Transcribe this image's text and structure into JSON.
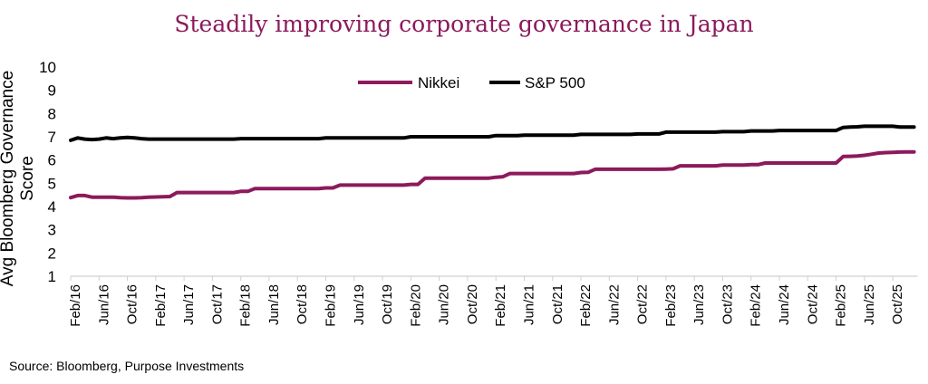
{
  "chart_data": {
    "type": "line",
    "title": "Steadily improving corporate governance in Japan",
    "ylabel": "Avg Bloomberg Governance Score",
    "xlabel": "",
    "ylim": [
      1,
      10
    ],
    "yticks": [
      1,
      2,
      3,
      4,
      5,
      6,
      7,
      8,
      9,
      10
    ],
    "x_start": "Feb/16",
    "x_frequency": "monthly",
    "x_end": "Jan/26",
    "xtick_labels": [
      "Feb/16",
      "Jun/16",
      "Oct/16",
      "Feb/17",
      "Jun/17",
      "Oct/17",
      "Feb/18",
      "Jun/18",
      "Oct/18",
      "Feb/19",
      "Jun/19",
      "Oct/19",
      "Feb/20",
      "Jun/20",
      "Oct/20",
      "Feb/21",
      "Jun/21",
      "Oct/21",
      "Feb/22",
      "Jun/22",
      "Oct/22",
      "Feb/23",
      "Jun/23",
      "Oct/23",
      "Feb/24",
      "Jun/24",
      "Oct/24",
      "Feb/25",
      "Jun/25",
      "Oct/25"
    ],
    "grid": false,
    "legend_placement": "top-center",
    "series": [
      {
        "name": "Nikkei",
        "color": "#8c1a5c",
        "values": [
          4.38,
          4.47,
          4.47,
          4.4,
          4.4,
          4.4,
          4.4,
          4.38,
          4.37,
          4.37,
          4.38,
          4.4,
          4.41,
          4.42,
          4.43,
          4.6,
          4.6,
          4.6,
          4.6,
          4.6,
          4.6,
          4.6,
          4.6,
          4.6,
          4.65,
          4.65,
          4.77,
          4.77,
          4.77,
          4.77,
          4.77,
          4.77,
          4.77,
          4.77,
          4.77,
          4.77,
          4.8,
          4.8,
          4.92,
          4.92,
          4.92,
          4.92,
          4.92,
          4.92,
          4.92,
          4.92,
          4.92,
          4.92,
          4.95,
          4.95,
          5.22,
          5.22,
          5.22,
          5.22,
          5.22,
          5.22,
          5.22,
          5.22,
          5.22,
          5.22,
          5.26,
          5.28,
          5.42,
          5.42,
          5.42,
          5.42,
          5.42,
          5.42,
          5.42,
          5.42,
          5.42,
          5.42,
          5.46,
          5.47,
          5.6,
          5.6,
          5.6,
          5.6,
          5.6,
          5.6,
          5.6,
          5.6,
          5.6,
          5.6,
          5.61,
          5.62,
          5.75,
          5.75,
          5.75,
          5.75,
          5.75,
          5.75,
          5.78,
          5.78,
          5.78,
          5.78,
          5.8,
          5.8,
          5.87,
          5.87,
          5.87,
          5.87,
          5.87,
          5.87,
          5.87,
          5.87,
          5.87,
          5.87,
          5.87,
          6.15,
          6.16,
          6.17,
          6.2,
          6.25,
          6.3,
          6.32,
          6.33,
          6.34,
          6.35,
          6.35
        ]
      },
      {
        "name": "S&P 500",
        "color": "#000000",
        "values": [
          6.85,
          6.95,
          6.9,
          6.88,
          6.9,
          6.95,
          6.92,
          6.95,
          6.97,
          6.95,
          6.92,
          6.9,
          6.9,
          6.9,
          6.9,
          6.9,
          6.9,
          6.9,
          6.9,
          6.9,
          6.9,
          6.9,
          6.9,
          6.9,
          6.92,
          6.92,
          6.92,
          6.92,
          6.92,
          6.92,
          6.92,
          6.92,
          6.92,
          6.92,
          6.92,
          6.92,
          6.95,
          6.95,
          6.95,
          6.95,
          6.95,
          6.95,
          6.95,
          6.95,
          6.95,
          6.95,
          6.95,
          6.95,
          7.0,
          7.0,
          7.0,
          7.0,
          7.0,
          7.0,
          7.0,
          7.0,
          7.0,
          7.0,
          7.0,
          7.0,
          7.05,
          7.05,
          7.05,
          7.05,
          7.07,
          7.07,
          7.07,
          7.07,
          7.07,
          7.07,
          7.07,
          7.07,
          7.1,
          7.1,
          7.1,
          7.1,
          7.1,
          7.1,
          7.1,
          7.1,
          7.12,
          7.12,
          7.12,
          7.12,
          7.2,
          7.2,
          7.2,
          7.2,
          7.2,
          7.2,
          7.2,
          7.2,
          7.22,
          7.22,
          7.22,
          7.22,
          7.25,
          7.25,
          7.25,
          7.25,
          7.27,
          7.27,
          7.27,
          7.27,
          7.27,
          7.27,
          7.27,
          7.27,
          7.27,
          7.4,
          7.42,
          7.43,
          7.45,
          7.45,
          7.45,
          7.45,
          7.45,
          7.42,
          7.42,
          7.42
        ]
      }
    ],
    "title_color": "#8c1a5c",
    "source": "Source: Bloomberg, Purpose Investments"
  }
}
